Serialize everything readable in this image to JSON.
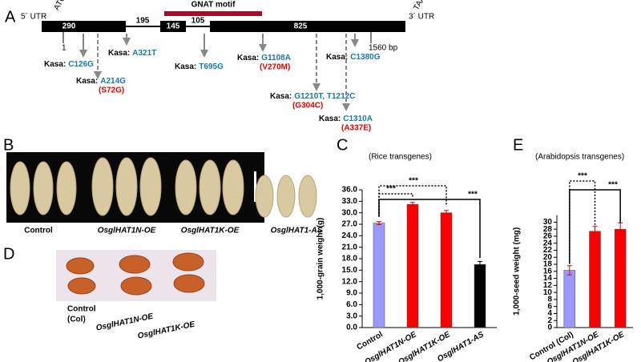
{
  "panel_a": {
    "label": "A",
    "utr5": "5´ UTR",
    "start_codon": "ATG",
    "stop_codon": "TAA",
    "utr3": "3´ UTR",
    "motif": "GNAT motif",
    "segments": [
      "290",
      "195",
      "145",
      "105",
      "825"
    ],
    "start_pos": "1",
    "end_pos": "1560 bp",
    "mutations": [
      {
        "prefix": "Kasa:",
        "change": "C126G"
      },
      {
        "prefix": "Kasa:",
        "change": "A214G",
        "effect": "(S72G)"
      },
      {
        "prefix": "Kasa:",
        "change": "A321T"
      },
      {
        "prefix": "Kasa:",
        "change": "T695G"
      },
      {
        "prefix": "Kasa:",
        "change": "G1108A",
        "effect": "(V270M)"
      },
      {
        "prefix": "Kasa:",
        "change": "G1210T, T1212C",
        "effect": "(G304C)"
      },
      {
        "prefix": "Kasa:",
        "change": "C1380G"
      },
      {
        "prefix": "Kasa:",
        "change": "C1310A",
        "effect": "(A337E)"
      }
    ]
  },
  "panel_b": {
    "label": "B",
    "captions": [
      "Control",
      "OsglHAT1N-OE",
      "OsglHAT1K-OE",
      "OsglHAT1-AS"
    ]
  },
  "panel_d": {
    "label": "D",
    "captions": [
      "Control",
      "(Col)",
      "OsglHAT1N-OE",
      "OsglHAT1K-OE"
    ]
  },
  "chart_data": [
    {
      "type": "bar",
      "label": "C",
      "subtitle": "(Rice transgenes)",
      "y_label": "1,000-grain weight (g)",
      "categories": [
        "Control",
        "OsglHAT1N-OE",
        "OsglHAT1K-OE",
        "OsglHAT1-AS"
      ],
      "values": [
        27.3,
        32.2,
        30.0,
        16.5
      ],
      "errors": [
        0.4,
        0.5,
        0.6,
        0.8
      ],
      "colors": [
        "#9999ff",
        "#ff0000",
        "#ff0000",
        "#000000"
      ],
      "ylim": [
        0,
        36
      ],
      "yticks": [
        {
          "value": 0,
          "label": "0.0"
        },
        {
          "value": 3,
          "label": "3.0"
        },
        {
          "value": 6,
          "label": "6.0"
        },
        {
          "value": 9,
          "label": "9.0"
        },
        {
          "value": 12,
          "label": "12.0"
        },
        {
          "value": 15,
          "label": "15.0"
        },
        {
          "value": 18,
          "label": "18.0"
        },
        {
          "value": 21,
          "label": "21.0"
        },
        {
          "value": 24,
          "label": "24.0"
        },
        {
          "value": 27,
          "label": "27.0"
        },
        {
          "value": 30,
          "label": "30.0"
        },
        {
          "value": 33,
          "label": "33.0"
        },
        {
          "value": 36,
          "label": "36.0"
        }
      ],
      "significance": [
        "***",
        "***",
        "***"
      ]
    },
    {
      "type": "bar",
      "label": "E",
      "subtitle": "(Arabidopsis transgenes)",
      "y_label": "1,000-seed weight (mg)",
      "categories": [
        "Control (Col)",
        "OsglHAT1N-OE",
        "OsglHAT1K-OE"
      ],
      "values": [
        16.3,
        27.4,
        28.0
      ],
      "errors": [
        1.3,
        1.4,
        1.8
      ],
      "colors": [
        "#9999ff",
        "#ff0000",
        "#ff0000"
      ],
      "ylim": [
        0,
        32
      ],
      "yticks": [
        0,
        2,
        4,
        6,
        8,
        10,
        12,
        14,
        16,
        18,
        20,
        22,
        24,
        26,
        28,
        30
      ],
      "significance": [
        "***",
        "***"
      ]
    }
  ]
}
